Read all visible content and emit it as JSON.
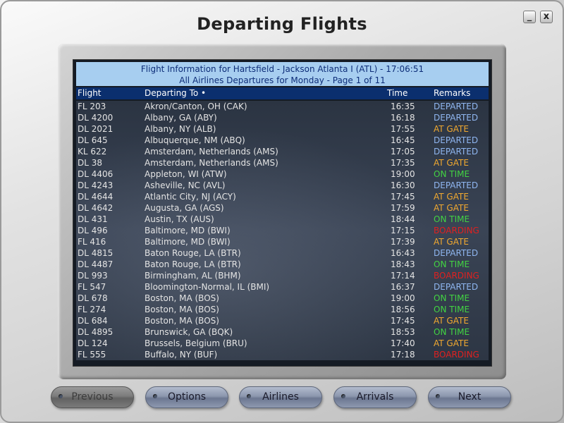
{
  "window": {
    "title": "Departing Flights",
    "min_label": "_",
    "close_label": "x"
  },
  "board": {
    "header_line1": "Flight Information for Hartsfield - Jackson Atlanta I (ATL) - 17:06:51",
    "header_line2": "All Airlines Departures for Monday - Page 1 of 11",
    "columns": {
      "flight": "Flight",
      "dest": "Departing To •",
      "time": "Time",
      "remarks": "Remarks"
    },
    "status_colors": {
      "DEPARTED": "#8fb6f0",
      "AT GATE": "#f0a830",
      "ON TIME": "#42d442",
      "BOARDING": "#e02020"
    },
    "flights": [
      {
        "flight": "FL 203",
        "dest": "Akron/Canton, OH (CAK)",
        "time": "16:35",
        "remarks": "DEPARTED"
      },
      {
        "flight": "DL 4200",
        "dest": "Albany, GA (ABY)",
        "time": "16:18",
        "remarks": "DEPARTED"
      },
      {
        "flight": "DL 2021",
        "dest": "Albany, NY (ALB)",
        "time": "17:55",
        "remarks": "AT GATE"
      },
      {
        "flight": "DL 645",
        "dest": "Albuquerque, NM (ABQ)",
        "time": "16:45",
        "remarks": "DEPARTED"
      },
      {
        "flight": "KL 622",
        "dest": "Amsterdam, Netherlands (AMS)",
        "time": "17:05",
        "remarks": "DEPARTED"
      },
      {
        "flight": "DL 38",
        "dest": "Amsterdam, Netherlands (AMS)",
        "time": "17:35",
        "remarks": "AT GATE"
      },
      {
        "flight": "DL 4406",
        "dest": "Appleton, WI (ATW)",
        "time": "19:00",
        "remarks": "ON TIME"
      },
      {
        "flight": "DL 4243",
        "dest": "Asheville, NC (AVL)",
        "time": "16:30",
        "remarks": "DEPARTED"
      },
      {
        "flight": "DL 4644",
        "dest": "Atlantic City, NJ (ACY)",
        "time": "17:45",
        "remarks": "AT GATE"
      },
      {
        "flight": "DL 4642",
        "dest": "Augusta, GA (AGS)",
        "time": "17:59",
        "remarks": "AT GATE"
      },
      {
        "flight": "DL 431",
        "dest": "Austin, TX (AUS)",
        "time": "18:44",
        "remarks": "ON TIME"
      },
      {
        "flight": "DL 496",
        "dest": "Baltimore, MD (BWI)",
        "time": "17:15",
        "remarks": "BOARDING"
      },
      {
        "flight": "FL 416",
        "dest": "Baltimore, MD (BWI)",
        "time": "17:39",
        "remarks": "AT GATE"
      },
      {
        "flight": "DL 4815",
        "dest": "Baton Rouge, LA (BTR)",
        "time": "16:43",
        "remarks": "DEPARTED"
      },
      {
        "flight": "DL 4487",
        "dest": "Baton Rouge, LA (BTR)",
        "time": "18:43",
        "remarks": "ON TIME"
      },
      {
        "flight": "DL 993",
        "dest": "Birmingham, AL (BHM)",
        "time": "17:14",
        "remarks": "BOARDING"
      },
      {
        "flight": "FL 547",
        "dest": "Bloomington-Normal, IL (BMI)",
        "time": "16:37",
        "remarks": "DEPARTED"
      },
      {
        "flight": "DL 678",
        "dest": "Boston, MA (BOS)",
        "time": "19:00",
        "remarks": "ON TIME"
      },
      {
        "flight": "FL 274",
        "dest": "Boston, MA (BOS)",
        "time": "18:56",
        "remarks": "ON TIME"
      },
      {
        "flight": "DL 684",
        "dest": "Boston, MA (BOS)",
        "time": "17:45",
        "remarks": "AT GATE"
      },
      {
        "flight": "DL 4895",
        "dest": "Brunswick, GA (BQK)",
        "time": "18:53",
        "remarks": "ON TIME"
      },
      {
        "flight": "DL 124",
        "dest": "Brussels, Belgium (BRU)",
        "time": "17:40",
        "remarks": "AT GATE"
      },
      {
        "flight": "FL 555",
        "dest": "Buffalo, NY (BUF)",
        "time": "17:18",
        "remarks": "BOARDING"
      }
    ]
  },
  "buttons": {
    "previous": "Previous",
    "options": "Options",
    "airlines": "Airlines",
    "arrivals": "Arrivals",
    "next": "Next"
  }
}
